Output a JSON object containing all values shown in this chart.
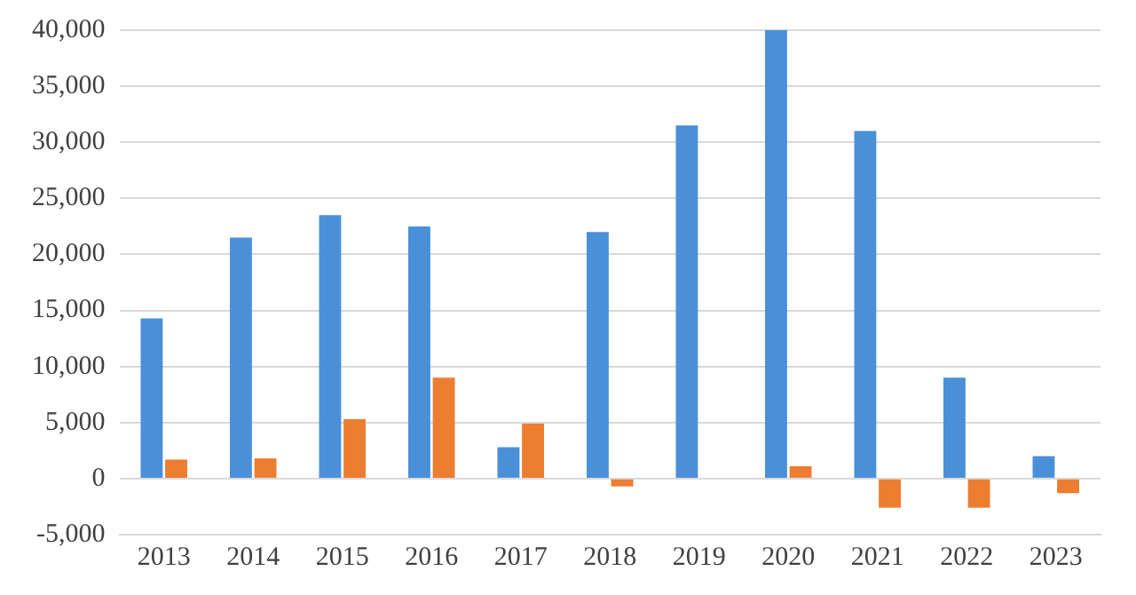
{
  "chart_data": {
    "type": "bar",
    "categories": [
      "2013",
      "2014",
      "2015",
      "2016",
      "2017",
      "2018",
      "2019",
      "2020",
      "2021",
      "2022",
      "2023"
    ],
    "series": [
      {
        "color": "#4a90d9",
        "values": [
          14300,
          21500,
          23500,
          22500,
          2800,
          22000,
          31500,
          40000,
          31000,
          9000,
          2000
        ]
      },
      {
        "color": "#ed7d31",
        "values": [
          1700,
          1800,
          5300,
          9000,
          4900,
          -700,
          0,
          1100,
          -2600,
          -2600,
          -1300
        ]
      }
    ],
    "ylim": [
      -5000,
      40000
    ],
    "yticks": [
      {
        "value": -5000,
        "label": "-5,000"
      },
      0,
      {
        "value": 5000,
        "label": "5,000"
      },
      {
        "value": 10000,
        "label": "10,000"
      },
      {
        "value": 15000,
        "label": "15,000"
      },
      {
        "value": 20000,
        "label": "20,000"
      },
      {
        "value": 25000,
        "label": "25,000"
      },
      {
        "value": 30000,
        "label": "30,000"
      },
      {
        "value": 35000,
        "label": "35,000"
      },
      {
        "value": 40000,
        "label": "40,000"
      }
    ],
    "grid": "y",
    "legend": false
  }
}
